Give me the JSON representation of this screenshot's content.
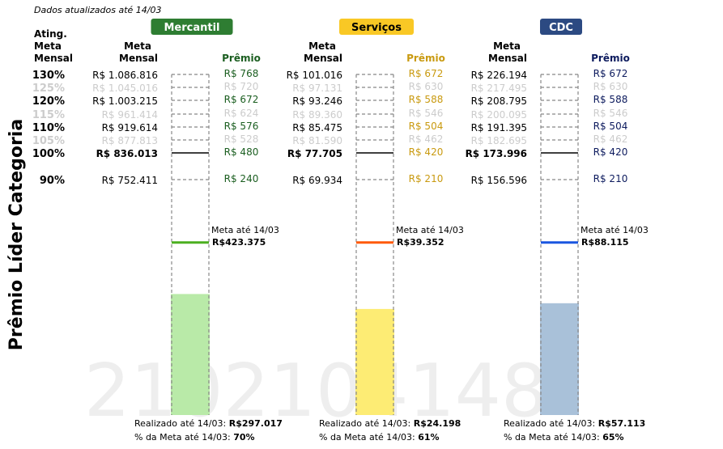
{
  "header": {
    "update_note": "Dados atualizados até 14/03",
    "side_title": "Prêmio Líder Categoria",
    "watermark": "2102104148"
  },
  "labels": {
    "ating_line1": "Ating.",
    "ating_line2": "Meta",
    "ating_line3": "Mensal",
    "meta_line1": "Meta",
    "meta_line2": "Mensal",
    "premio": "Prêmio",
    "goal_line1": "Meta até 14/03",
    "realized_prefix": "Realizado até 14/03: ",
    "pct_prefix": "% da Meta até 14/03: "
  },
  "colors": {
    "faded": "#cccccc",
    "dashed": "#888888",
    "watermark": "#eeeeee"
  },
  "chart_data": {
    "type": "bar",
    "levels": [
      "130%",
      "125%",
      "120%",
      "115%",
      "110%",
      "105%",
      "100%",
      "90%"
    ],
    "level_values": [
      130,
      125,
      120,
      115,
      110,
      105,
      100,
      90
    ],
    "faded_levels": [
      "125%",
      "115%",
      "105%"
    ],
    "bold_level": "100%",
    "categories": [
      {
        "name": "Mercantil",
        "badge_color": "#2e7d32",
        "badge_text_color": "#ffffff",
        "premio_color": "#1b5e20",
        "fill_color": "#b9eaa8",
        "goal_line_color": "#4caf20",
        "metas": [
          "R$ 1.086.816",
          "R$ 1.045.016",
          "R$ 1.003.215",
          "R$ 961.414",
          "R$ 919.614",
          "R$ 877.813",
          "R$ 836.013",
          "R$ 752.411"
        ],
        "premios": [
          "R$ 768",
          "R$ 720",
          "R$ 672",
          "R$ 624",
          "R$ 576",
          "R$ 528",
          "R$ 480",
          "R$ 240"
        ],
        "goal_to_date": "R$423.375",
        "realized": "R$297.017",
        "pct_of_goal": "70%",
        "goal_to_date_ratio": 0.5064,
        "realized_ratio": 0.3553
      },
      {
        "name": "Serviços",
        "badge_color": "#f9c825",
        "badge_text_color": "#000000",
        "premio_color": "#c99a10",
        "fill_color": "#fdec74",
        "goal_line_color": "#ff5a0a",
        "metas": [
          "R$ 101.016",
          "R$ 97.131",
          "R$ 93.246",
          "R$ 89.360",
          "R$ 85.475",
          "R$ 81.590",
          "R$ 77.705",
          "R$ 69.934"
        ],
        "premios": [
          "R$ 672",
          "R$ 630",
          "R$ 588",
          "R$ 546",
          "R$ 504",
          "R$ 462",
          "R$ 420",
          "R$ 210"
        ],
        "goal_to_date": "R$39.352",
        "realized": "R$24.198",
        "pct_of_goal": "61%",
        "goal_to_date_ratio": 0.5064,
        "realized_ratio": 0.3114
      },
      {
        "name": "CDC",
        "badge_color": "#2c4a82",
        "badge_text_color": "#ffffff",
        "premio_color": "#0d1b5e",
        "fill_color": "#a9c1d9",
        "goal_line_color": "#1a56e0",
        "metas": [
          "R$ 226.194",
          "R$ 217.495",
          "R$ 208.795",
          "R$ 200.095",
          "R$ 191.395",
          "R$ 182.695",
          "R$ 173.996",
          "R$ 156.596"
        ],
        "premios": [
          "R$ 672",
          "R$ 630",
          "R$ 588",
          "R$ 546",
          "R$ 504",
          "R$ 462",
          "R$ 420",
          "R$ 210"
        ],
        "goal_to_date": "R$88.115",
        "realized": "R$57.113",
        "pct_of_goal": "65%",
        "goal_to_date_ratio": 0.5064,
        "realized_ratio": 0.3282
      }
    ]
  }
}
